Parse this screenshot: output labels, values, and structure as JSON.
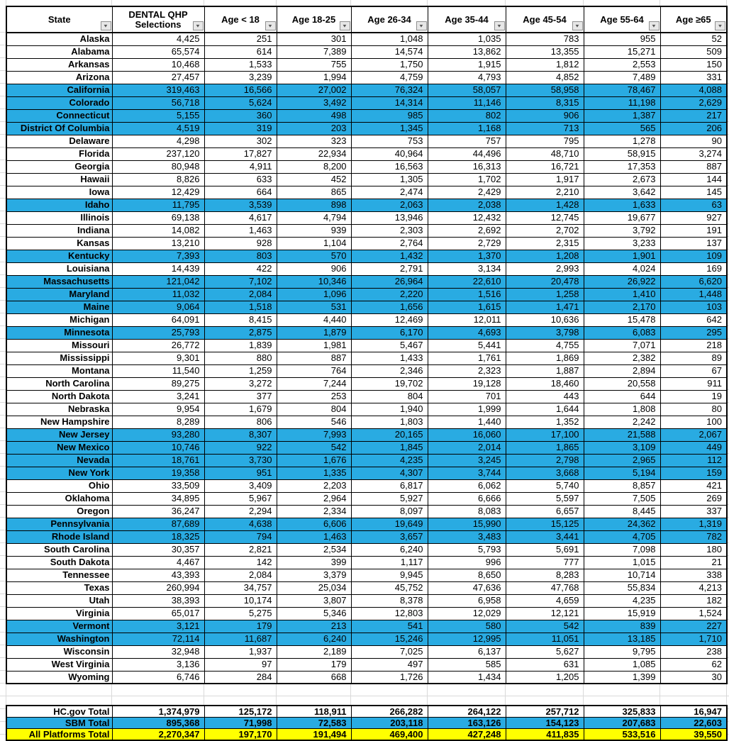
{
  "table": {
    "columns": [
      {
        "label": "State"
      },
      {
        "label": "DENTAL QHP\nSelections"
      },
      {
        "label": "Age < 18"
      },
      {
        "label": "Age 18-25"
      },
      {
        "label": "Age 26-34"
      },
      {
        "label": "Age 35-44"
      },
      {
        "label": "Age 45-54"
      },
      {
        "label": "Age 55-64"
      },
      {
        "label": "Age ≥65"
      }
    ],
    "rows": [
      {
        "state": "Alaska",
        "highlighted": false,
        "values": [
          "4,425",
          "251",
          "301",
          "1,048",
          "1,035",
          "783",
          "955",
          "52"
        ]
      },
      {
        "state": "Alabama",
        "highlighted": false,
        "values": [
          "65,574",
          "614",
          "7,389",
          "14,574",
          "13,862",
          "13,355",
          "15,271",
          "509"
        ]
      },
      {
        "state": "Arkansas",
        "highlighted": false,
        "values": [
          "10,468",
          "1,533",
          "755",
          "1,750",
          "1,915",
          "1,812",
          "2,553",
          "150"
        ]
      },
      {
        "state": "Arizona",
        "highlighted": false,
        "values": [
          "27,457",
          "3,239",
          "1,994",
          "4,759",
          "4,793",
          "4,852",
          "7,489",
          "331"
        ]
      },
      {
        "state": "California",
        "highlighted": true,
        "values": [
          "319,463",
          "16,566",
          "27,002",
          "76,324",
          "58,057",
          "58,958",
          "78,467",
          "4,088"
        ]
      },
      {
        "state": "Colorado",
        "highlighted": true,
        "values": [
          "56,718",
          "5,624",
          "3,492",
          "14,314",
          "11,146",
          "8,315",
          "11,198",
          "2,629"
        ]
      },
      {
        "state": "Connecticut",
        "highlighted": true,
        "values": [
          "5,155",
          "360",
          "498",
          "985",
          "802",
          "906",
          "1,387",
          "217"
        ]
      },
      {
        "state": "District Of Columbia",
        "highlighted": true,
        "values": [
          "4,519",
          "319",
          "203",
          "1,345",
          "1,168",
          "713",
          "565",
          "206"
        ]
      },
      {
        "state": "Delaware",
        "highlighted": false,
        "values": [
          "4,298",
          "302",
          "323",
          "753",
          "757",
          "795",
          "1,278",
          "90"
        ]
      },
      {
        "state": "Florida",
        "highlighted": false,
        "values": [
          "237,120",
          "17,827",
          "22,934",
          "40,964",
          "44,496",
          "48,710",
          "58,915",
          "3,274"
        ]
      },
      {
        "state": "Georgia",
        "highlighted": false,
        "values": [
          "80,948",
          "4,911",
          "8,200",
          "16,563",
          "16,313",
          "16,721",
          "17,353",
          "887"
        ]
      },
      {
        "state": "Hawaii",
        "highlighted": false,
        "values": [
          "8,826",
          "633",
          "452",
          "1,305",
          "1,702",
          "1,917",
          "2,673",
          "144"
        ]
      },
      {
        "state": "Iowa",
        "highlighted": false,
        "values": [
          "12,429",
          "664",
          "865",
          "2,474",
          "2,429",
          "2,210",
          "3,642",
          "145"
        ]
      },
      {
        "state": "Idaho",
        "highlighted": true,
        "values": [
          "11,795",
          "3,539",
          "898",
          "2,063",
          "2,038",
          "1,428",
          "1,633",
          "63"
        ]
      },
      {
        "state": "Illinois",
        "highlighted": false,
        "values": [
          "69,138",
          "4,617",
          "4,794",
          "13,946",
          "12,432",
          "12,745",
          "19,677",
          "927"
        ]
      },
      {
        "state": "Indiana",
        "highlighted": false,
        "values": [
          "14,082",
          "1,463",
          "939",
          "2,303",
          "2,692",
          "2,702",
          "3,792",
          "191"
        ]
      },
      {
        "state": "Kansas",
        "highlighted": false,
        "values": [
          "13,210",
          "928",
          "1,104",
          "2,764",
          "2,729",
          "2,315",
          "3,233",
          "137"
        ]
      },
      {
        "state": "Kentucky",
        "highlighted": true,
        "values": [
          "7,393",
          "803",
          "570",
          "1,432",
          "1,370",
          "1,208",
          "1,901",
          "109"
        ]
      },
      {
        "state": "Louisiana",
        "highlighted": false,
        "values": [
          "14,439",
          "422",
          "906",
          "2,791",
          "3,134",
          "2,993",
          "4,024",
          "169"
        ]
      },
      {
        "state": "Massachusetts",
        "highlighted": true,
        "values": [
          "121,042",
          "7,102",
          "10,346",
          "26,964",
          "22,610",
          "20,478",
          "26,922",
          "6,620"
        ]
      },
      {
        "state": "Maryland",
        "highlighted": true,
        "values": [
          "11,032",
          "2,084",
          "1,096",
          "2,220",
          "1,516",
          "1,258",
          "1,410",
          "1,448"
        ]
      },
      {
        "state": "Maine",
        "highlighted": true,
        "values": [
          "9,064",
          "1,518",
          "531",
          "1,656",
          "1,615",
          "1,471",
          "2,170",
          "103"
        ]
      },
      {
        "state": "Michigan",
        "highlighted": false,
        "values": [
          "64,091",
          "8,415",
          "4,440",
          "12,469",
          "12,011",
          "10,636",
          "15,478",
          "642"
        ]
      },
      {
        "state": "Minnesota",
        "highlighted": true,
        "values": [
          "25,793",
          "2,875",
          "1,879",
          "6,170",
          "4,693",
          "3,798",
          "6,083",
          "295"
        ]
      },
      {
        "state": "Missouri",
        "highlighted": false,
        "values": [
          "26,772",
          "1,839",
          "1,981",
          "5,467",
          "5,441",
          "4,755",
          "7,071",
          "218"
        ]
      },
      {
        "state": "Mississippi",
        "highlighted": false,
        "values": [
          "9,301",
          "880",
          "887",
          "1,433",
          "1,761",
          "1,869",
          "2,382",
          "89"
        ]
      },
      {
        "state": "Montana",
        "highlighted": false,
        "values": [
          "11,540",
          "1,259",
          "764",
          "2,346",
          "2,323",
          "1,887",
          "2,894",
          "67"
        ]
      },
      {
        "state": "North Carolina",
        "highlighted": false,
        "values": [
          "89,275",
          "3,272",
          "7,244",
          "19,702",
          "19,128",
          "18,460",
          "20,558",
          "911"
        ]
      },
      {
        "state": "North Dakota",
        "highlighted": false,
        "values": [
          "3,241",
          "377",
          "253",
          "804",
          "701",
          "443",
          "644",
          "19"
        ]
      },
      {
        "state": "Nebraska",
        "highlighted": false,
        "values": [
          "9,954",
          "1,679",
          "804",
          "1,940",
          "1,999",
          "1,644",
          "1,808",
          "80"
        ]
      },
      {
        "state": "New Hampshire",
        "highlighted": false,
        "values": [
          "8,289",
          "806",
          "546",
          "1,803",
          "1,440",
          "1,352",
          "2,242",
          "100"
        ]
      },
      {
        "state": "New Jersey",
        "highlighted": true,
        "values": [
          "93,280",
          "8,307",
          "7,993",
          "20,165",
          "16,060",
          "17,100",
          "21,588",
          "2,067"
        ]
      },
      {
        "state": "New Mexico",
        "highlighted": true,
        "values": [
          "10,746",
          "922",
          "542",
          "1,845",
          "2,014",
          "1,865",
          "3,109",
          "449"
        ]
      },
      {
        "state": "Nevada",
        "highlighted": true,
        "values": [
          "18,761",
          "3,730",
          "1,676",
          "4,235",
          "3,245",
          "2,798",
          "2,965",
          "112"
        ]
      },
      {
        "state": "New York",
        "highlighted": true,
        "values": [
          "19,358",
          "951",
          "1,335",
          "4,307",
          "3,744",
          "3,668",
          "5,194",
          "159"
        ]
      },
      {
        "state": "Ohio",
        "highlighted": false,
        "values": [
          "33,509",
          "3,409",
          "2,203",
          "6,817",
          "6,062",
          "5,740",
          "8,857",
          "421"
        ]
      },
      {
        "state": "Oklahoma",
        "highlighted": false,
        "values": [
          "34,895",
          "5,967",
          "2,964",
          "5,927",
          "6,666",
          "5,597",
          "7,505",
          "269"
        ]
      },
      {
        "state": "Oregon",
        "highlighted": false,
        "values": [
          "36,247",
          "2,294",
          "2,334",
          "8,097",
          "8,083",
          "6,657",
          "8,445",
          "337"
        ]
      },
      {
        "state": "Pennsylvania",
        "highlighted": true,
        "values": [
          "87,689",
          "4,638",
          "6,606",
          "19,649",
          "15,990",
          "15,125",
          "24,362",
          "1,319"
        ]
      },
      {
        "state": "Rhode Island",
        "highlighted": true,
        "values": [
          "18,325",
          "794",
          "1,463",
          "3,657",
          "3,483",
          "3,441",
          "4,705",
          "782"
        ]
      },
      {
        "state": "South Carolina",
        "highlighted": false,
        "values": [
          "30,357",
          "2,821",
          "2,534",
          "6,240",
          "5,793",
          "5,691",
          "7,098",
          "180"
        ]
      },
      {
        "state": "South Dakota",
        "highlighted": false,
        "values": [
          "4,467",
          "142",
          "399",
          "1,117",
          "996",
          "777",
          "1,015",
          "21"
        ]
      },
      {
        "state": "Tennessee",
        "highlighted": false,
        "values": [
          "43,393",
          "2,084",
          "3,379",
          "9,945",
          "8,650",
          "8,283",
          "10,714",
          "338"
        ]
      },
      {
        "state": "Texas",
        "highlighted": false,
        "values": [
          "260,994",
          "34,757",
          "25,034",
          "45,752",
          "47,636",
          "47,768",
          "55,834",
          "4,213"
        ]
      },
      {
        "state": "Utah",
        "highlighted": false,
        "values": [
          "38,393",
          "10,174",
          "3,807",
          "8,378",
          "6,958",
          "4,659",
          "4,235",
          "182"
        ]
      },
      {
        "state": "Virginia",
        "highlighted": false,
        "values": [
          "65,017",
          "5,275",
          "5,346",
          "12,803",
          "12,029",
          "12,121",
          "15,919",
          "1,524"
        ]
      },
      {
        "state": "Vermont",
        "highlighted": true,
        "values": [
          "3,121",
          "179",
          "213",
          "541",
          "580",
          "542",
          "839",
          "227"
        ]
      },
      {
        "state": "Washington",
        "highlighted": true,
        "values": [
          "72,114",
          "11,687",
          "6,240",
          "15,246",
          "12,995",
          "11,051",
          "13,185",
          "1,710"
        ]
      },
      {
        "state": "Wisconsin",
        "highlighted": false,
        "values": [
          "32,948",
          "1,937",
          "2,189",
          "7,025",
          "6,137",
          "5,627",
          "9,795",
          "238"
        ]
      },
      {
        "state": "West Virginia",
        "highlighted": false,
        "values": [
          "3,136",
          "97",
          "179",
          "497",
          "585",
          "631",
          "1,085",
          "62"
        ]
      },
      {
        "state": "Wyoming",
        "highlighted": false,
        "values": [
          "6,746",
          "284",
          "668",
          "1,726",
          "1,434",
          "1,205",
          "1,399",
          "30"
        ]
      }
    ],
    "totals": [
      {
        "label": "HC.gov Total",
        "style": "white",
        "values": [
          "1,374,979",
          "125,172",
          "118,911",
          "266,282",
          "264,122",
          "257,712",
          "325,833",
          "16,947"
        ]
      },
      {
        "label": "SBM Total",
        "style": "blue",
        "values": [
          "895,368",
          "71,998",
          "72,583",
          "203,118",
          "163,126",
          "154,123",
          "207,683",
          "22,603"
        ]
      },
      {
        "label": "All Platforms Total",
        "style": "yellow",
        "values": [
          "2,270,347",
          "197,170",
          "191,494",
          "469,400",
          "427,248",
          "411,835",
          "533,516",
          "39,550"
        ]
      }
    ]
  },
  "icons": {
    "filter_arrow": "▼"
  },
  "colors": {
    "highlight_blue": "#29ABE2",
    "total_yellow": "#FFFF00",
    "grid_line": "#D9D9D9",
    "border_black": "#000000"
  }
}
